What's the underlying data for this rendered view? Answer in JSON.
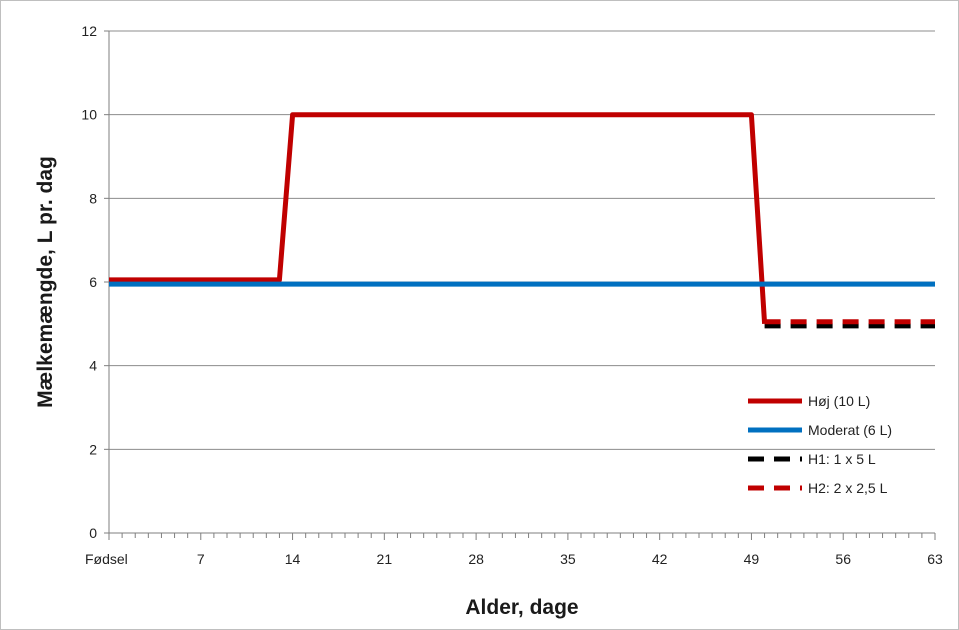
{
  "chart_data": {
    "type": "line",
    "title": "",
    "xlabel": "Alder, dage",
    "ylabel": "Mælkemængde, L pr. dag",
    "xlim": [
      0,
      63
    ],
    "ylim": [
      0,
      12
    ],
    "x_ticks": [
      {
        "value": 0,
        "label": "Fødsel"
      },
      {
        "value": 7,
        "label": "7"
      },
      {
        "value": 14,
        "label": "14"
      },
      {
        "value": 21,
        "label": "21"
      },
      {
        "value": 28,
        "label": "28"
      },
      {
        "value": 35,
        "label": "35"
      },
      {
        "value": 42,
        "label": "42"
      },
      {
        "value": 49,
        "label": "49"
      },
      {
        "value": 56,
        "label": "56"
      },
      {
        "value": 63,
        "label": "63"
      }
    ],
    "y_ticks": [
      0,
      2,
      4,
      6,
      8,
      10,
      12
    ],
    "grid": "horizontal",
    "legend_position": "bottom-right",
    "series": [
      {
        "name": "Høj (10 L)",
        "color": "#c00000",
        "dash": "solid",
        "x": [
          0,
          13,
          14,
          49,
          50
        ],
        "y": [
          6.05,
          6.05,
          10,
          10,
          5
        ]
      },
      {
        "name": "Moderat (6 L)",
        "color": "#0070c0",
        "dash": "solid",
        "x": [
          0,
          63
        ],
        "y": [
          5.95,
          5.95
        ]
      },
      {
        "name": "H1: 1 x 5 L",
        "color": "#000000",
        "dash": "dashed",
        "x": [
          50,
          63
        ],
        "y": [
          4.95,
          4.95
        ]
      },
      {
        "name": "H2: 2 x 2,5 L",
        "color": "#c00000",
        "dash": "dashed",
        "x": [
          50,
          63
        ],
        "y": [
          5.05,
          5.05
        ]
      }
    ]
  }
}
